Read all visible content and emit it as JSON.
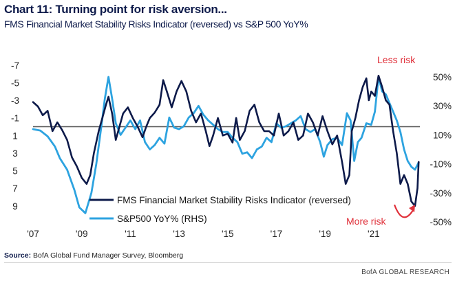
{
  "chart_data": {
    "type": "line",
    "title": "Chart 11: Turning point for risk aversion...",
    "subtitle": "FMS Financial Market Stability Risks Indicator (reversed) vs S&P 500 YoY%",
    "x_ticks": [
      "'07",
      "'09",
      "'11",
      "'13",
      "'15",
      "'17",
      "'19",
      "'21"
    ],
    "x_range": [
      2007.0,
      2022.9
    ],
    "left_axis": {
      "ticks": [
        "-7",
        "-5",
        "-3",
        "-1",
        "1",
        "3",
        "5",
        "7",
        "9"
      ],
      "tick_values": [
        -7,
        -5,
        -3,
        -1,
        1,
        3,
        5,
        7,
        9
      ],
      "range": [
        -8,
        9.8
      ],
      "reversed": true
    },
    "right_axis": {
      "ticks": [
        "50%",
        "30%",
        "10%",
        "-10%",
        "-30%",
        "-50%"
      ],
      "tick_values": [
        50,
        30,
        10,
        -10,
        -30,
        -50
      ],
      "range": [
        -50,
        50
      ]
    },
    "reference_line": {
      "axis": "left",
      "value": 0,
      "color": "#555555"
    },
    "series": [
      {
        "name": "FMS Financial Market Stability Risks Indicator (reversed)",
        "axis": "left",
        "color": "#0d1a4a",
        "points": [
          [
            2007.0,
            -2.8
          ],
          [
            2007.2,
            -2.3
          ],
          [
            2007.4,
            -1.3
          ],
          [
            2007.6,
            -1.8
          ],
          [
            2007.8,
            0.5
          ],
          [
            2008.0,
            -0.5
          ],
          [
            2008.2,
            0.4
          ],
          [
            2008.4,
            1.5
          ],
          [
            2008.6,
            3.5
          ],
          [
            2008.8,
            4.5
          ],
          [
            2009.0,
            5.8
          ],
          [
            2009.2,
            6.5
          ],
          [
            2009.35,
            5.5
          ],
          [
            2009.5,
            3.0
          ],
          [
            2009.7,
            0.5
          ],
          [
            2009.85,
            -1.0
          ],
          [
            2010.0,
            -2.5
          ],
          [
            2010.1,
            -3.4
          ],
          [
            2010.25,
            -1.5
          ],
          [
            2010.4,
            1.5
          ],
          [
            2010.55,
            0.0
          ],
          [
            2010.7,
            -1.5
          ],
          [
            2010.9,
            -2.2
          ],
          [
            2011.1,
            -1.0
          ],
          [
            2011.3,
            0.0
          ],
          [
            2011.5,
            1.2
          ],
          [
            2011.65,
            0.0
          ],
          [
            2011.8,
            -1.0
          ],
          [
            2012.0,
            -1.6
          ],
          [
            2012.2,
            -2.5
          ],
          [
            2012.35,
            -5.3
          ],
          [
            2012.5,
            -4.0
          ],
          [
            2012.7,
            -2.2
          ],
          [
            2012.9,
            -4.0
          ],
          [
            2013.1,
            -5.2
          ],
          [
            2013.3,
            -4.0
          ],
          [
            2013.5,
            -1.8
          ],
          [
            2013.7,
            -0.5
          ],
          [
            2013.9,
            -1.5
          ],
          [
            2014.1,
            0.5
          ],
          [
            2014.25,
            2.2
          ],
          [
            2014.4,
            1.0
          ],
          [
            2014.6,
            -1.0
          ],
          [
            2014.8,
            1.0
          ],
          [
            2015.0,
            0.8
          ],
          [
            2015.2,
            1.8
          ],
          [
            2015.35,
            -1.0
          ],
          [
            2015.5,
            1.5
          ],
          [
            2015.7,
            0.5
          ],
          [
            2015.9,
            -1.8
          ],
          [
            2016.1,
            -2.5
          ],
          [
            2016.3,
            -0.5
          ],
          [
            2016.5,
            0.5
          ],
          [
            2016.7,
            0.5
          ],
          [
            2016.9,
            1.0
          ],
          [
            2017.1,
            -1.5
          ],
          [
            2017.3,
            1.0
          ],
          [
            2017.5,
            0.5
          ],
          [
            2017.7,
            -0.5
          ],
          [
            2017.9,
            1.5
          ],
          [
            2018.1,
            1.0
          ],
          [
            2018.3,
            -1.5
          ],
          [
            2018.5,
            -0.5
          ],
          [
            2018.7,
            1.0
          ],
          [
            2018.9,
            -1.2
          ],
          [
            2019.1,
            0.5
          ],
          [
            2019.3,
            2.0
          ],
          [
            2019.5,
            1.0
          ],
          [
            2019.7,
            4.0
          ],
          [
            2019.85,
            6.5
          ],
          [
            2020.0,
            5.5
          ],
          [
            2020.1,
            0.5
          ],
          [
            2020.25,
            -1.0
          ],
          [
            2020.4,
            -3.0
          ],
          [
            2020.55,
            -4.5
          ],
          [
            2020.7,
            -5.5
          ],
          [
            2020.8,
            -3.0
          ],
          [
            2020.9,
            -4.0
          ],
          [
            2021.05,
            -3.5
          ],
          [
            2021.2,
            -5.8
          ],
          [
            2021.35,
            -4.5
          ],
          [
            2021.5,
            -3.0
          ],
          [
            2021.65,
            -2.5
          ],
          [
            2021.8,
            0.5
          ],
          [
            2021.95,
            3.0
          ],
          [
            2022.1,
            6.5
          ],
          [
            2022.25,
            5.5
          ],
          [
            2022.4,
            6.5
          ],
          [
            2022.55,
            8.5
          ],
          [
            2022.7,
            9.0
          ],
          [
            2022.8,
            7.0
          ],
          [
            2022.85,
            4.0
          ]
        ]
      },
      {
        "name": "S&P500 YoY% (RHS)",
        "axis": "right",
        "color": "#2da3e0",
        "points": [
          [
            2007.0,
            14
          ],
          [
            2007.3,
            13
          ],
          [
            2007.6,
            9
          ],
          [
            2007.9,
            2
          ],
          [
            2008.1,
            -6
          ],
          [
            2008.4,
            -14
          ],
          [
            2008.7,
            -28
          ],
          [
            2008.9,
            -40
          ],
          [
            2009.15,
            -44
          ],
          [
            2009.4,
            -30
          ],
          [
            2009.6,
            -10
          ],
          [
            2009.8,
            15
          ],
          [
            2009.95,
            35
          ],
          [
            2010.1,
            50
          ],
          [
            2010.25,
            35
          ],
          [
            2010.4,
            18
          ],
          [
            2010.6,
            10
          ],
          [
            2010.8,
            15
          ],
          [
            2011.0,
            20
          ],
          [
            2011.2,
            14
          ],
          [
            2011.4,
            20
          ],
          [
            2011.6,
            5
          ],
          [
            2011.8,
            0
          ],
          [
            2012.0,
            3
          ],
          [
            2012.2,
            8
          ],
          [
            2012.4,
            4
          ],
          [
            2012.6,
            22
          ],
          [
            2012.8,
            15
          ],
          [
            2013.0,
            14
          ],
          [
            2013.2,
            16
          ],
          [
            2013.4,
            22
          ],
          [
            2013.6,
            25
          ],
          [
            2013.8,
            30
          ],
          [
            2014.0,
            24
          ],
          [
            2014.2,
            20
          ],
          [
            2014.4,
            17
          ],
          [
            2014.6,
            14
          ],
          [
            2014.8,
            12
          ],
          [
            2015.0,
            12
          ],
          [
            2015.2,
            8
          ],
          [
            2015.4,
            5
          ],
          [
            2015.6,
            -3
          ],
          [
            2015.8,
            -2
          ],
          [
            2016.0,
            -6
          ],
          [
            2016.2,
            0
          ],
          [
            2016.4,
            2
          ],
          [
            2016.6,
            8
          ],
          [
            2016.8,
            5
          ],
          [
            2017.0,
            18
          ],
          [
            2017.2,
            15
          ],
          [
            2017.4,
            16
          ],
          [
            2017.6,
            18
          ],
          [
            2017.8,
            20
          ],
          [
            2018.0,
            23
          ],
          [
            2018.2,
            14
          ],
          [
            2018.4,
            12
          ],
          [
            2018.6,
            14
          ],
          [
            2018.8,
            5
          ],
          [
            2018.95,
            -5
          ],
          [
            2019.1,
            3
          ],
          [
            2019.3,
            7
          ],
          [
            2019.5,
            8
          ],
          [
            2019.7,
            3
          ],
          [
            2019.9,
            25
          ],
          [
            2020.05,
            20
          ],
          [
            2020.2,
            -8
          ],
          [
            2020.35,
            5
          ],
          [
            2020.5,
            8
          ],
          [
            2020.7,
            18
          ],
          [
            2020.9,
            17
          ],
          [
            2021.05,
            26
          ],
          [
            2021.2,
            50
          ],
          [
            2021.35,
            40
          ],
          [
            2021.5,
            38
          ],
          [
            2021.65,
            32
          ],
          [
            2021.8,
            26
          ],
          [
            2021.95,
            20
          ],
          [
            2022.1,
            12
          ],
          [
            2022.25,
            0
          ],
          [
            2022.4,
            -8
          ],
          [
            2022.55,
            -12
          ],
          [
            2022.7,
            -14
          ],
          [
            2022.85,
            -9
          ]
        ]
      }
    ],
    "annotations": [
      {
        "text": "Less risk",
        "color": "#e0303a"
      },
      {
        "text": "More risk",
        "color": "#e0303a"
      }
    ],
    "legend": {
      "placement": "bottom-center",
      "entries": [
        "FMS Financial Market Stability Risks Indicator (reversed)",
        "S&P500 YoY% (RHS)"
      ]
    }
  },
  "source_label": "Source:",
  "source_text": "BofA Global Fund Manager Survey, Bloomberg",
  "brand": "BofA GLOBAL RESEARCH"
}
